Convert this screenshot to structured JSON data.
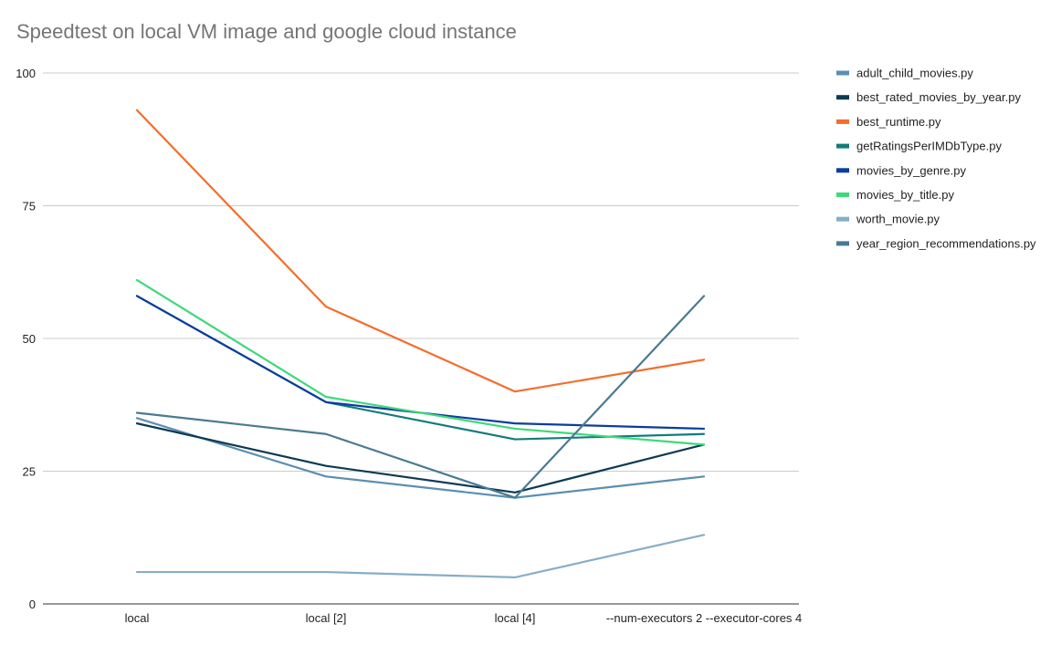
{
  "chart_data": {
    "type": "line",
    "title": "Speedtest on local VM image and google cloud instance",
    "xlabel": "",
    "ylabel": "",
    "categories": [
      "local",
      "local [2]",
      "local [4]",
      "--num-executors 2 --executor-cores 4"
    ],
    "ylim": [
      0,
      100
    ],
    "yticks": [
      0,
      25,
      50,
      75,
      100
    ],
    "grid": true,
    "legend_position": "right",
    "series": [
      {
        "name": "adult_child_movies.py",
        "color": "#5b8fb0",
        "values": [
          35,
          24,
          20,
          24
        ]
      },
      {
        "name": "best_rated_movies_by_year.py",
        "color": "#0d3b52",
        "values": [
          34,
          26,
          21,
          30
        ]
      },
      {
        "name": "best_runtime.py",
        "color": "#f46d2b",
        "values": [
          93,
          56,
          40,
          46
        ]
      },
      {
        "name": "getRatingsPerIMDbType.py",
        "color": "#137b7b",
        "values": [
          58,
          38,
          31,
          32
        ]
      },
      {
        "name": "movies_by_genre.py",
        "color": "#0a3d9e",
        "values": [
          58,
          38,
          34,
          33
        ]
      },
      {
        "name": "movies_by_title.py",
        "color": "#3dd97a",
        "values": [
          61,
          39,
          33,
          30
        ]
      },
      {
        "name": "worth_movie.py",
        "color": "#87aec7",
        "values": [
          6,
          6,
          5,
          13
        ]
      },
      {
        "name": "year_region_recommendations.py",
        "color": "#4a7a92",
        "values": [
          36,
          32,
          20,
          58
        ]
      }
    ]
  }
}
